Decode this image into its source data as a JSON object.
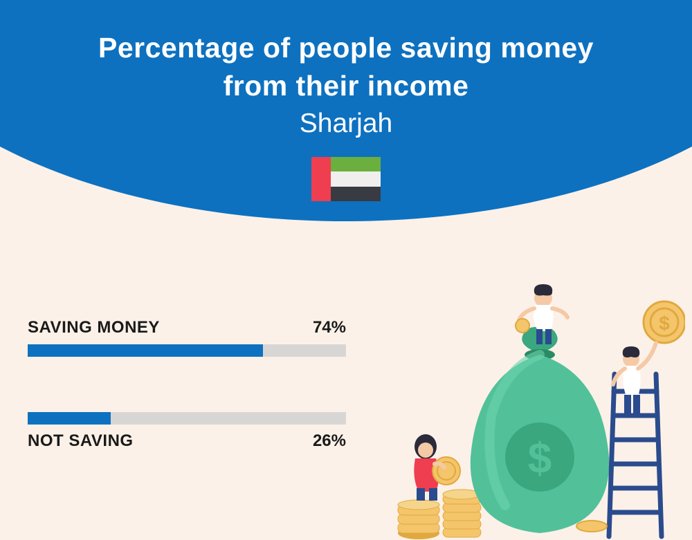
{
  "header": {
    "title_line1": "Percentage of people saving money",
    "title_line2": "from their income",
    "subtitle": "Sharjah",
    "flag_colors": {
      "red": "#ee3e4f",
      "green": "#6bb03e",
      "white": "#f0efee",
      "black": "#383b41"
    }
  },
  "bars": {
    "saving": {
      "label": "SAVING MONEY",
      "value_text": "74%",
      "percentage": 74,
      "fill_color": "#0d71c0",
      "track_color": "#d8d6d5"
    },
    "not_saving": {
      "label": "NOT SAVING",
      "value_text": "26%",
      "percentage": 26,
      "fill_color": "#0d71c0",
      "track_color": "#d8d6d5"
    }
  },
  "colors": {
    "header_bg": "#0d71c0",
    "page_bg": "#fcf1e8",
    "text_dark": "#1a1a1a",
    "text_light": "#ffffff"
  },
  "illustration": {
    "bag_color": "#52c19a",
    "bag_dark": "#3aa77f",
    "coin_color": "#f5c56b",
    "coin_dark": "#e0a93f",
    "ladder_color": "#2a4b8d",
    "person1_hair": "#2a2a3a",
    "person1_shirt": "#ffffff",
    "person1_pants": "#2a4b8d",
    "person2_hair": "#2a2a3a",
    "person2_shirt": "#ee3e4f",
    "person2_pants": "#2a4b8d",
    "person3_hair": "#2a2a3a",
    "person3_shirt": "#ffffff",
    "person3_pants": "#2a4b8d",
    "skin": "#f5c9a6"
  }
}
